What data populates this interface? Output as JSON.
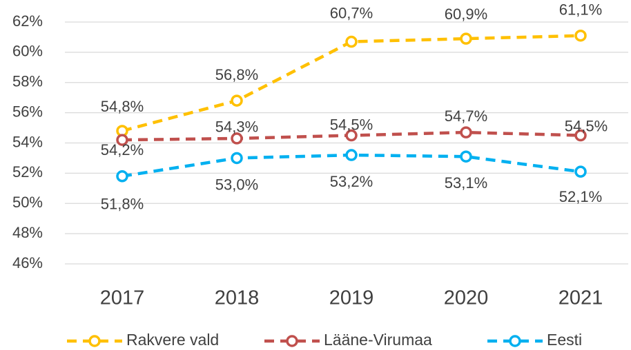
{
  "chart_data": {
    "type": "line",
    "categories": [
      "2017",
      "2018",
      "2019",
      "2020",
      "2021"
    ],
    "series": [
      {
        "name": "Rakvere vald",
        "color": "#FFC000",
        "values": [
          54.8,
          56.8,
          60.7,
          60.9,
          61.1
        ],
        "value_labels": [
          "54,8%",
          "56,8%",
          "60,7%",
          "60,9%",
          "61,1%"
        ]
      },
      {
        "name": "Lääne-Virumaa",
        "color": "#C0504D",
        "values": [
          54.2,
          54.3,
          54.5,
          54.7,
          54.5
        ],
        "value_labels": [
          "54,2%",
          "54,3%",
          "54,5%",
          "54,7%",
          "54,5%"
        ]
      },
      {
        "name": "Eesti",
        "color": "#00B0F0",
        "values": [
          51.8,
          53.0,
          53.2,
          53.1,
          52.1
        ],
        "value_labels": [
          "51,8%",
          "53,0%",
          "53,2%",
          "53,1%",
          "52,1%"
        ]
      }
    ],
    "ylim": [
      46,
      62
    ],
    "yticks": [
      {
        "value": 46,
        "label": "46%"
      },
      {
        "value": 48,
        "label": "48%"
      },
      {
        "value": 50,
        "label": "50%"
      },
      {
        "value": 52,
        "label": "52%"
      },
      {
        "value": 54,
        "label": "54%"
      },
      {
        "value": 56,
        "label": "56%"
      },
      {
        "value": 58,
        "label": "58%"
      },
      {
        "value": 60,
        "label": "60%"
      },
      {
        "value": 62,
        "label": "62%"
      }
    ],
    "grid": true,
    "legend": "bottom"
  }
}
